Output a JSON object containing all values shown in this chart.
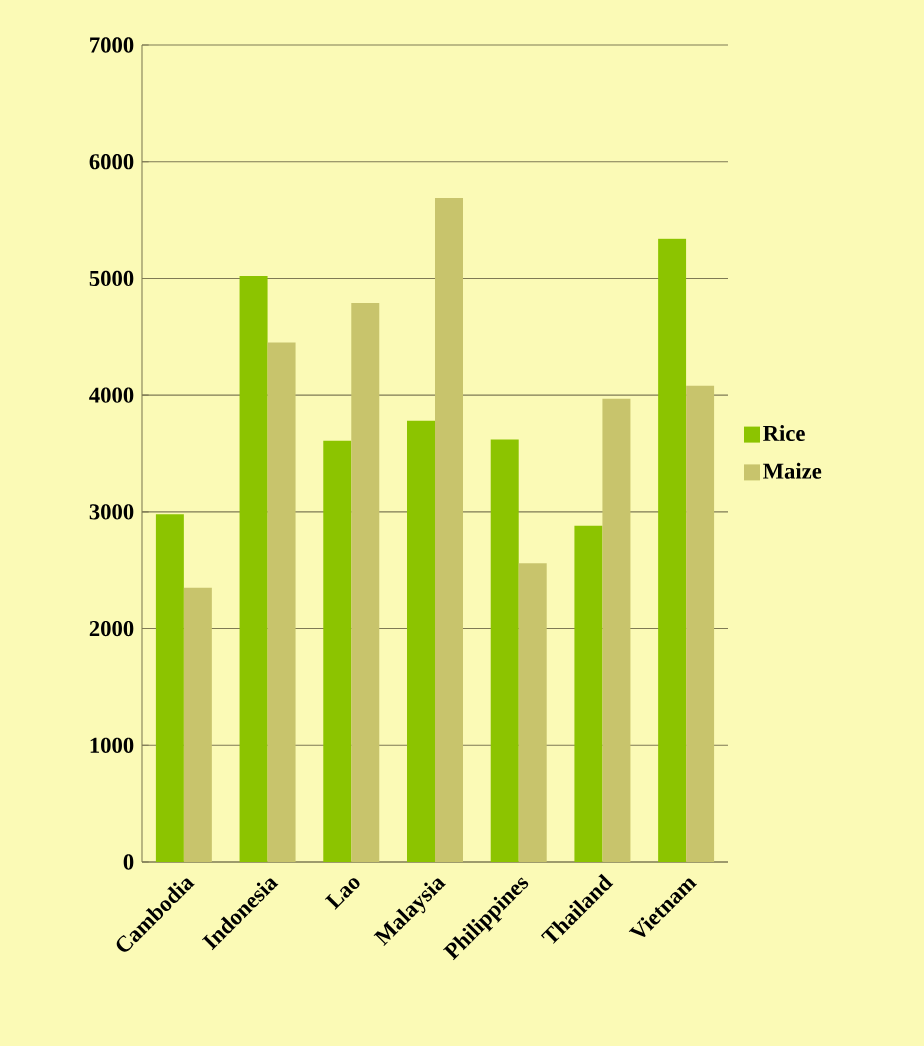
{
  "chart_data": {
    "type": "bar",
    "categories": [
      "Cambodia",
      "Indonesia",
      "Lao",
      "Malaysia",
      "Philippines",
      "Thailand",
      "Vietnam"
    ],
    "series": [
      {
        "name": "Rice",
        "color": "#8cc400",
        "values": [
          2980,
          5020,
          3610,
          3780,
          3620,
          2880,
          5340
        ]
      },
      {
        "name": "Maize",
        "color": "#c8c46c",
        "values": [
          2350,
          4450,
          4790,
          5690,
          2560,
          3970,
          4080
        ]
      }
    ],
    "ylim": [
      0,
      7000
    ],
    "yticks": [
      0,
      1000,
      2000,
      3000,
      4000,
      5000,
      6000,
      7000
    ],
    "grid": "y",
    "legend": "right"
  }
}
